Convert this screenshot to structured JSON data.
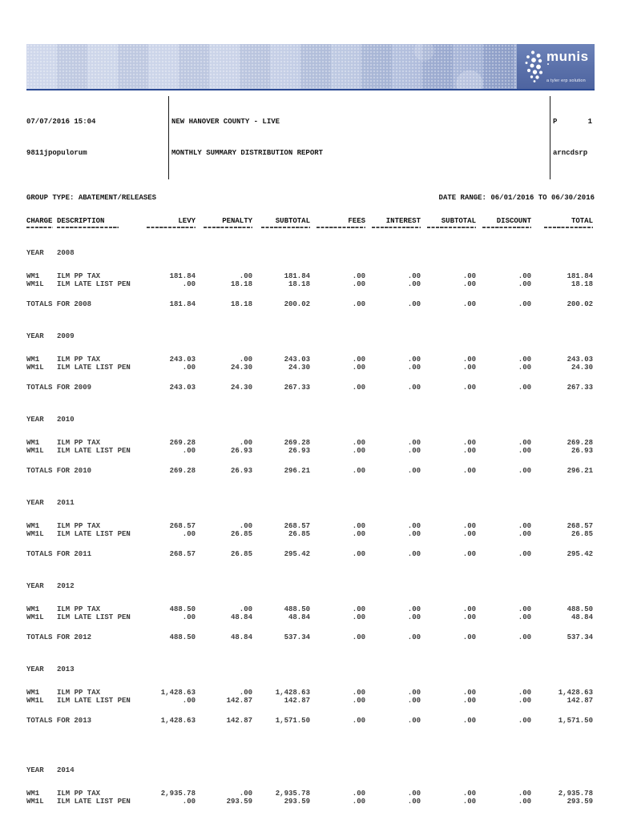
{
  "logo": {
    "name": "munis",
    "tagline": "a tyler erp solution"
  },
  "header": {
    "date_time": "07/07/2016 15:04",
    "user_id": "9811jpopulorum",
    "org_name": "NEW HANOVER COUNTY - LIVE",
    "report_title": "MONTHLY SUMMARY DISTRIBUTION REPORT",
    "page_label": "P",
    "page_number": "1",
    "report_code": "arncdsrp",
    "group_type_label": "GROUP TYPE:",
    "group_type_value": "ABATEMENT/RELEASES",
    "date_range_label": "DATE RANGE:",
    "date_range_value": "06/01/2016 TO 06/30/2016"
  },
  "table": {
    "columns": [
      "CHARGE",
      "DESCRIPTION",
      "LEVY",
      "PENALTY",
      "SUBTOTAL",
      "FEES",
      "INTEREST",
      "SUBTOTAL",
      "DISCOUNT",
      "TOTAL"
    ],
    "sections": [
      {
        "year_word": "YEAR",
        "year_value": "2008",
        "rows": [
          {
            "charge": "WM1",
            "description": "ILM PP TAX",
            "values": [
              "181.84",
              ".00",
              "181.84",
              ".00",
              ".00",
              ".00",
              ".00",
              "181.84"
            ]
          },
          {
            "charge": "WM1L",
            "description": "ILM LATE LIST PEN",
            "values": [
              ".00",
              "18.18",
              "18.18",
              ".00",
              ".00",
              ".00",
              ".00",
              "18.18"
            ]
          }
        ],
        "totals_label": "TOTALS FOR 2008",
        "totals": [
          "181.84",
          "18.18",
          "200.02",
          ".00",
          ".00",
          ".00",
          ".00",
          "200.02"
        ]
      },
      {
        "year_word": "YEAR",
        "year_value": "2009",
        "rows": [
          {
            "charge": "WM1",
            "description": "ILM PP TAX",
            "values": [
              "243.03",
              ".00",
              "243.03",
              ".00",
              ".00",
              ".00",
              ".00",
              "243.03"
            ]
          },
          {
            "charge": "WM1L",
            "description": "ILM LATE LIST PEN",
            "values": [
              ".00",
              "24.30",
              "24.30",
              ".00",
              ".00",
              ".00",
              ".00",
              "24.30"
            ]
          }
        ],
        "totals_label": "TOTALS FOR 2009",
        "totals": [
          "243.03",
          "24.30",
          "267.33",
          ".00",
          ".00",
          ".00",
          ".00",
          "267.33"
        ]
      },
      {
        "year_word": "YEAR",
        "year_value": "2010",
        "rows": [
          {
            "charge": "WM1",
            "description": "ILM PP TAX",
            "values": [
              "269.28",
              ".00",
              "269.28",
              ".00",
              ".00",
              ".00",
              ".00",
              "269.28"
            ]
          },
          {
            "charge": "WM1L",
            "description": "ILM LATE LIST PEN",
            "values": [
              ".00",
              "26.93",
              "26.93",
              ".00",
              ".00",
              ".00",
              ".00",
              "26.93"
            ]
          }
        ],
        "totals_label": "TOTALS FOR 2010",
        "totals": [
          "269.28",
          "26.93",
          "296.21",
          ".00",
          ".00",
          ".00",
          ".00",
          "296.21"
        ]
      },
      {
        "year_word": "YEAR",
        "year_value": "2011",
        "rows": [
          {
            "charge": "WM1",
            "description": "ILM PP TAX",
            "values": [
              "268.57",
              ".00",
              "268.57",
              ".00",
              ".00",
              ".00",
              ".00",
              "268.57"
            ]
          },
          {
            "charge": "WM1L",
            "description": "ILM LATE LIST PEN",
            "values": [
              ".00",
              "26.85",
              "26.85",
              ".00",
              ".00",
              ".00",
              ".00",
              "26.85"
            ]
          }
        ],
        "totals_label": "TOTALS FOR 2011",
        "totals": [
          "268.57",
          "26.85",
          "295.42",
          ".00",
          ".00",
          ".00",
          ".00",
          "295.42"
        ]
      },
      {
        "year_word": "YEAR",
        "year_value": "2012",
        "rows": [
          {
            "charge": "WM1",
            "description": "ILM PP TAX",
            "values": [
              "488.50",
              ".00",
              "488.50",
              ".00",
              ".00",
              ".00",
              ".00",
              "488.50"
            ]
          },
          {
            "charge": "WM1L",
            "description": "ILM LATE LIST PEN",
            "values": [
              ".00",
              "48.84",
              "48.84",
              ".00",
              ".00",
              ".00",
              ".00",
              "48.84"
            ]
          }
        ],
        "totals_label": "TOTALS FOR 2012",
        "totals": [
          "488.50",
          "48.84",
          "537.34",
          ".00",
          ".00",
          ".00",
          ".00",
          "537.34"
        ]
      },
      {
        "year_word": "YEAR",
        "year_value": "2013",
        "rows": [
          {
            "charge": "WM1",
            "description": "ILM PP TAX",
            "values": [
              "1,428.63",
              ".00",
              "1,428.63",
              ".00",
              ".00",
              ".00",
              ".00",
              "1,428.63"
            ]
          },
          {
            "charge": "WM1L",
            "description": "ILM LATE LIST PEN",
            "values": [
              ".00",
              "142.87",
              "142.87",
              ".00",
              ".00",
              ".00",
              ".00",
              "142.87"
            ]
          }
        ],
        "totals_label": "TOTALS FOR 2013",
        "totals": [
          "1,428.63",
          "142.87",
          "1,571.50",
          ".00",
          ".00",
          ".00",
          ".00",
          "1,571.50"
        ]
      },
      {
        "year_word": "YEAR",
        "year_value": "2014",
        "rows": [
          {
            "charge": "WM1",
            "description": "ILM PP TAX",
            "values": [
              "2,935.78",
              ".00",
              "2,935.78",
              ".00",
              ".00",
              ".00",
              ".00",
              "2,935.78"
            ]
          },
          {
            "charge": "WM1L",
            "description": "ILM LATE LIST PEN",
            "values": [
              ".00",
              "293.59",
              "293.59",
              ".00",
              ".00",
              ".00",
              ".00",
              "293.59"
            ]
          }
        ]
      }
    ]
  }
}
